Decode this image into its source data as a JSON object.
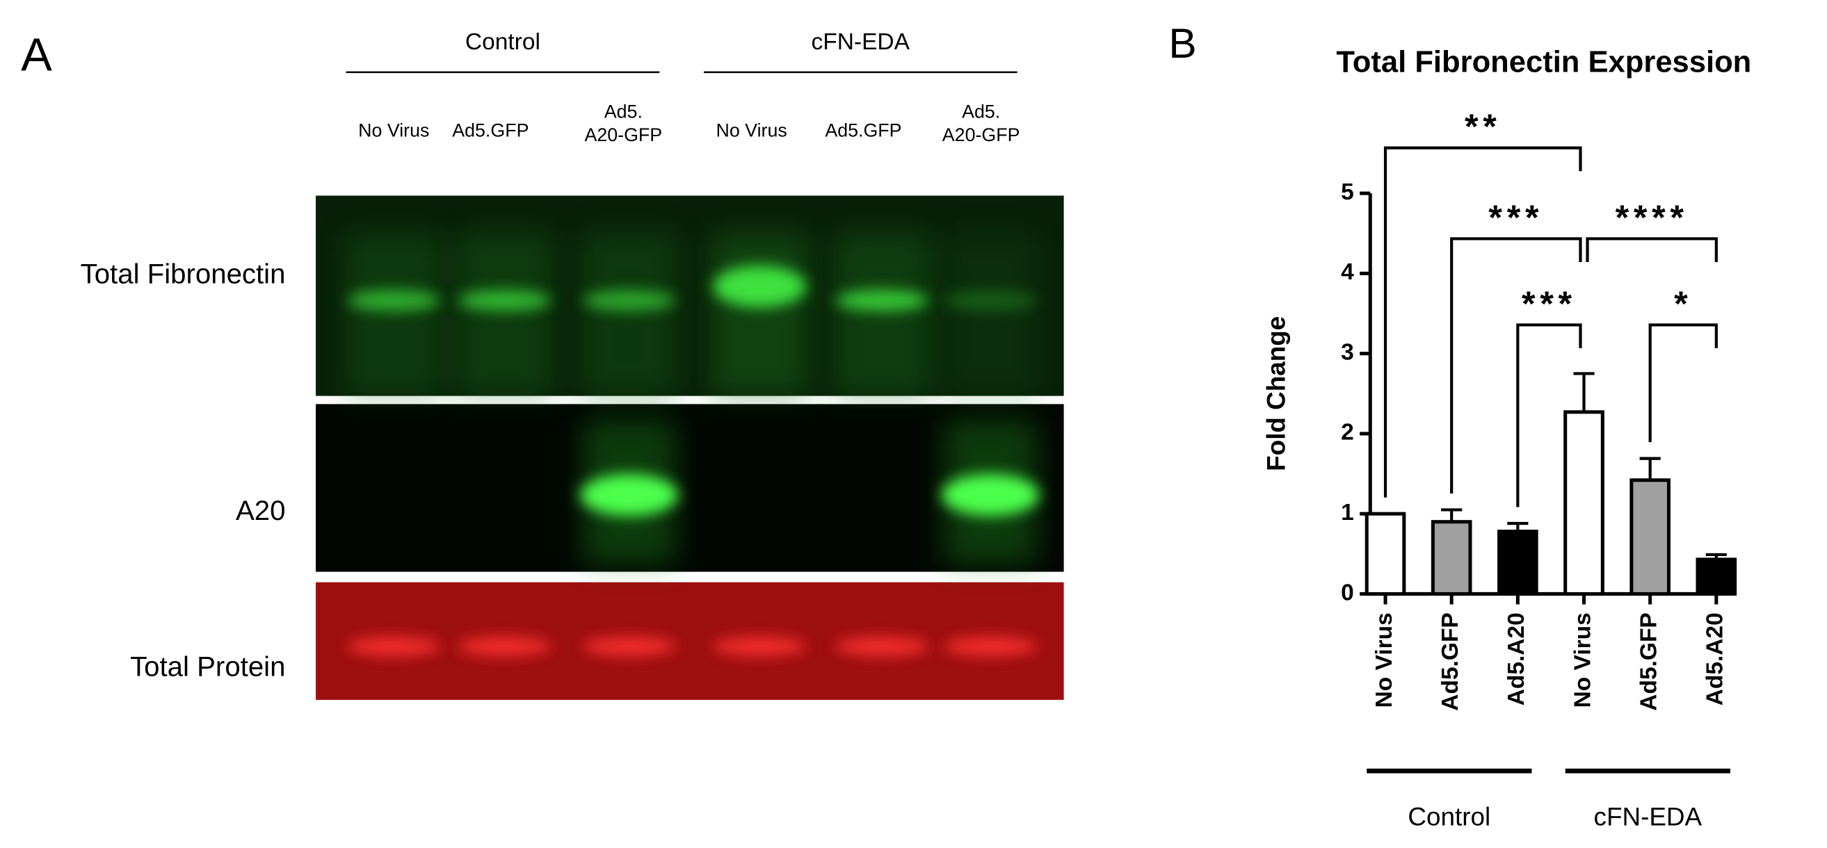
{
  "panel_a": {
    "label": "A",
    "groups": [
      "Control",
      "cFN-EDA"
    ],
    "lanes": [
      "No Virus",
      "Ad5.GFP",
      [
        "Ad5.",
        "A20-GFP"
      ],
      "No Virus",
      "Ad5.GFP",
      [
        "Ad5.",
        "A20-GFP"
      ]
    ],
    "rows": [
      "Total Fibronectin",
      "A20",
      "Total Protein"
    ]
  },
  "chart_data": {
    "type": "bar",
    "panel_label": "B",
    "title": "Total Fibronectin Expression",
    "ylabel": "Fold Change",
    "categories": [
      "No Virus",
      "Ad5.GFP",
      "Ad5.A20",
      "No Virus",
      "Ad5.GFP",
      "Ad5.A20"
    ],
    "groups": [
      "Control",
      "cFN-EDA"
    ],
    "values": [
      1.0,
      0.9,
      0.78,
      2.27,
      1.42,
      0.43
    ],
    "errors": [
      0,
      0.15,
      0.1,
      0.48,
      0.27,
      0.06
    ],
    "colors": [
      "#ffffff",
      "#a0a0a0",
      "#000000",
      "#ffffff",
      "#a0a0a0",
      "#000000"
    ],
    "edgecolor": "#000000",
    "ylim": [
      0,
      5
    ],
    "yticks": [
      0,
      1,
      2,
      3,
      4,
      5
    ],
    "significance": [
      {
        "pair": [
          0,
          3
        ],
        "label": "**"
      },
      {
        "pair": [
          1,
          3
        ],
        "label": "***"
      },
      {
        "pair": [
          3,
          5
        ],
        "label": "****"
      },
      {
        "pair": [
          2,
          3
        ],
        "label": "***"
      },
      {
        "pair": [
          4,
          5
        ],
        "label": "*"
      }
    ]
  }
}
